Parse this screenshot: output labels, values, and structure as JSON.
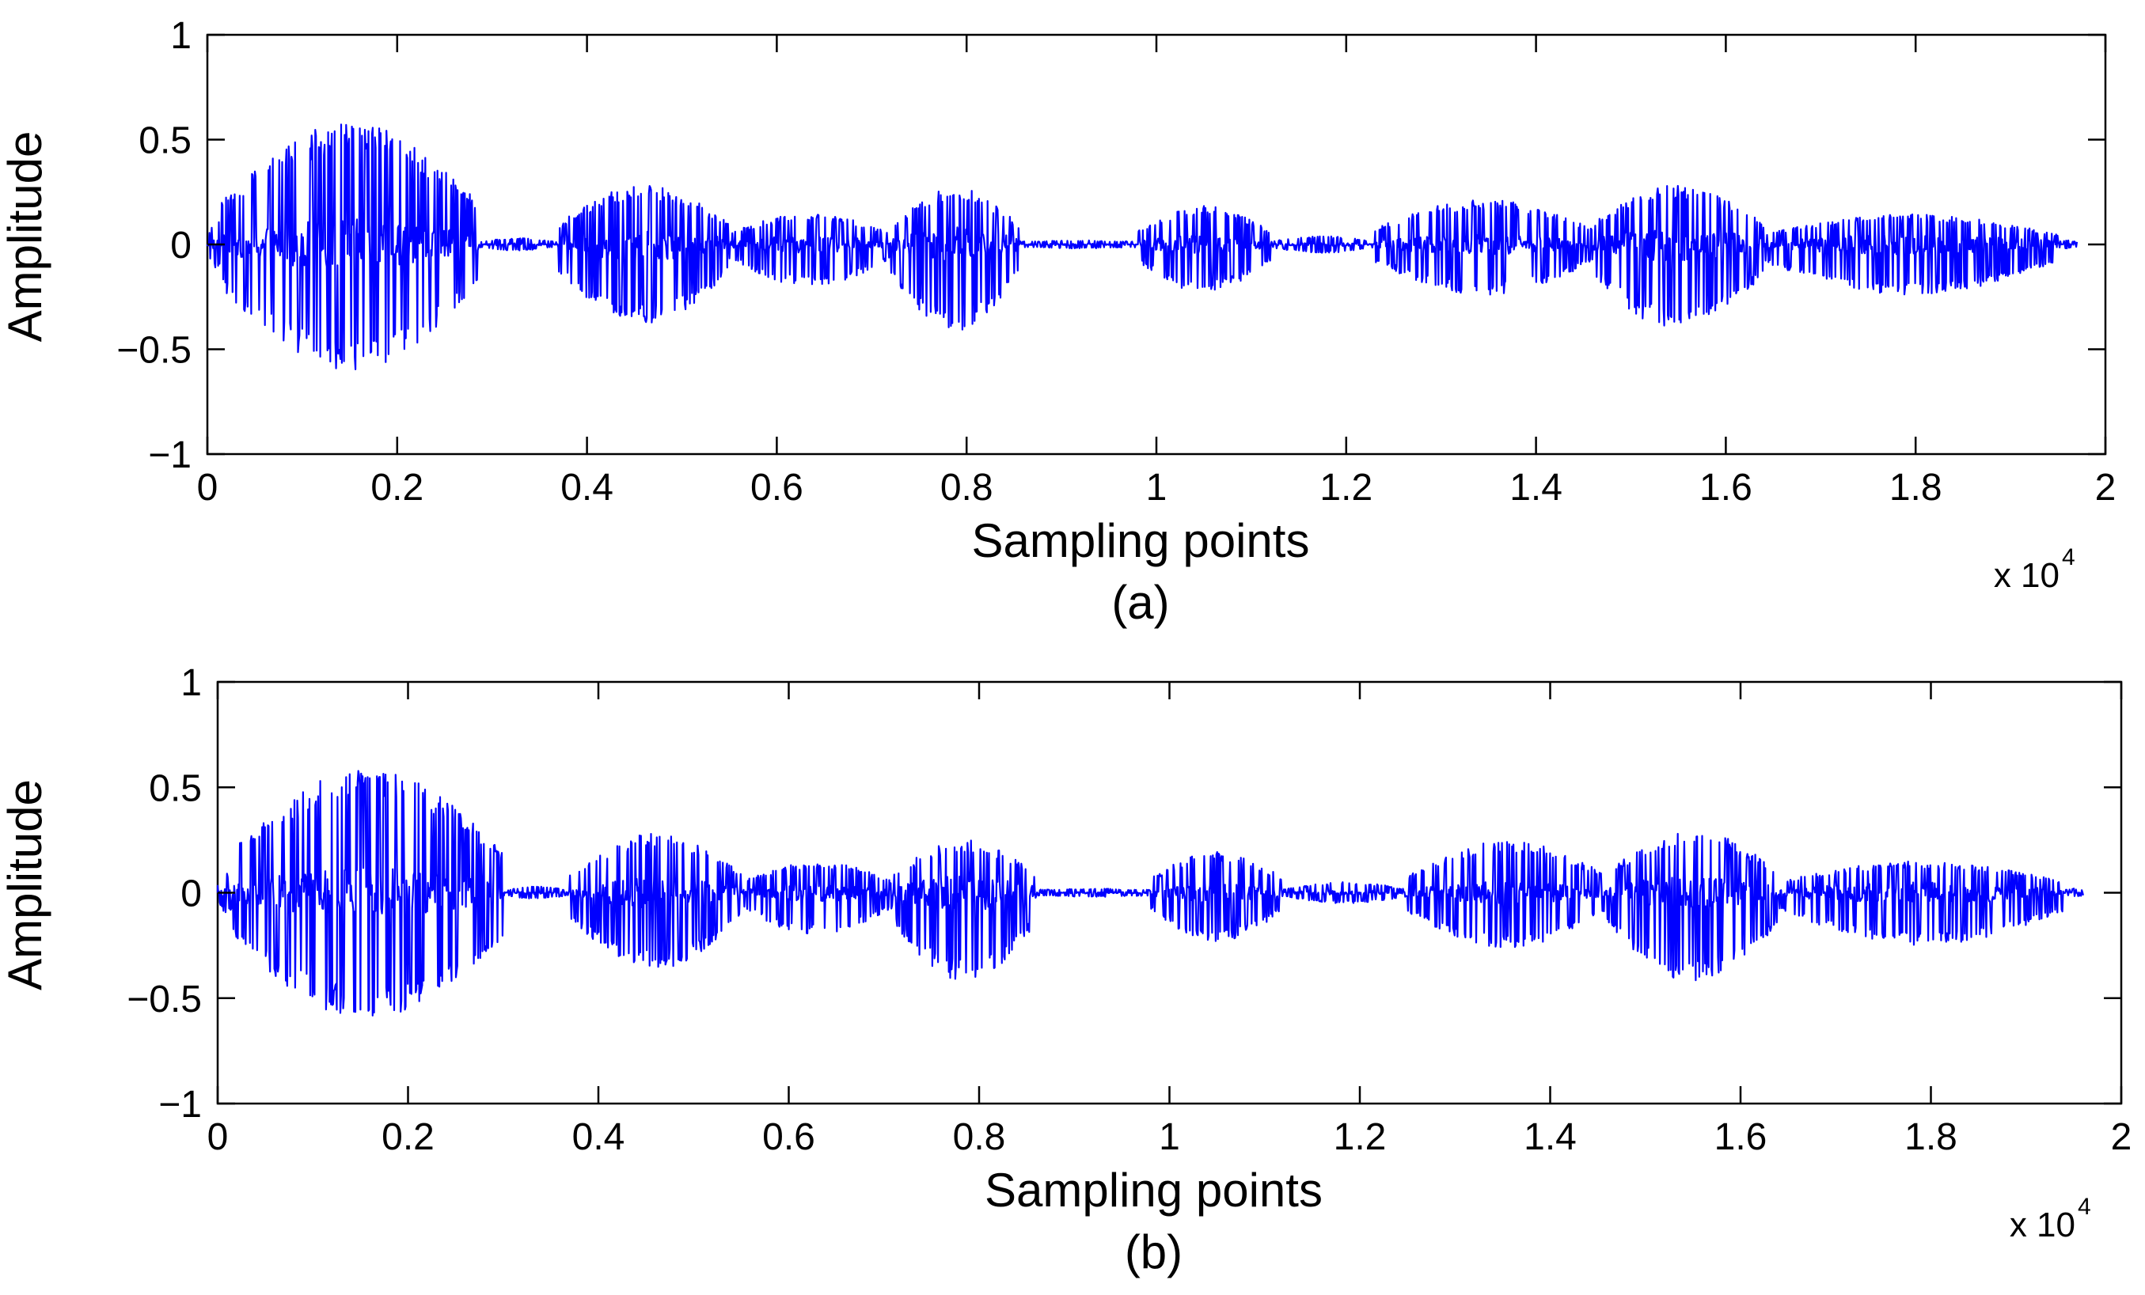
{
  "chart_data": [
    {
      "type": "line",
      "panel": "a",
      "caption": "(a)",
      "xlabel": "Sampling points",
      "ylabel": "Amplitude",
      "x_multiplier_base": "x 10",
      "x_multiplier_power": "4",
      "xlim": [
        0,
        2
      ],
      "ylim": [
        -1,
        1
      ],
      "xticks": [
        0,
        0.2,
        0.4,
        0.6,
        0.8,
        1,
        1.2,
        1.4,
        1.6,
        1.8,
        2
      ],
      "xtick_labels": [
        "0",
        "0.2",
        "0.4",
        "0.6",
        "0.8",
        "1",
        "1.2",
        "1.4",
        "1.6",
        "1.8",
        "2"
      ],
      "yticks": [
        1,
        0.5,
        0,
        -0.5,
        -1
      ],
      "ytick_labels": [
        "1",
        "0.5",
        "0",
        "−0.5",
        "−1"
      ],
      "series_color": "#0000ff",
      "signal_end": 1.97,
      "segments": [
        {
          "start": 0.0,
          "end": 0.02,
          "amp": 0.12,
          "pos_scale": 1.0
        },
        {
          "start": 0.015,
          "end": 0.285,
          "amp": 0.6,
          "pos_scale": 0.97
        },
        {
          "start": 0.285,
          "end": 0.37,
          "amp": 0.03,
          "pos_scale": 1.0
        },
        {
          "start": 0.37,
          "end": 0.55,
          "amp": 0.38,
          "pos_scale": 0.75
        },
        {
          "start": 0.55,
          "end": 0.72,
          "amp": 0.2,
          "pos_scale": 0.75
        },
        {
          "start": 0.72,
          "end": 0.855,
          "amp": 0.42,
          "pos_scale": 0.65
        },
        {
          "start": 0.855,
          "end": 0.98,
          "amp": 0.02,
          "pos_scale": 1.0
        },
        {
          "start": 0.98,
          "end": 1.12,
          "amp": 0.23,
          "pos_scale": 0.8
        },
        {
          "start": 1.12,
          "end": 1.23,
          "amp": 0.04,
          "pos_scale": 1.0
        },
        {
          "start": 1.23,
          "end": 1.46,
          "amp": 0.24,
          "pos_scale": 0.9
        },
        {
          "start": 1.46,
          "end": 1.64,
          "amp": 0.41,
          "pos_scale": 0.7
        },
        {
          "start": 1.64,
          "end": 1.95,
          "amp": 0.24,
          "pos_scale": 0.6
        },
        {
          "start": 1.95,
          "end": 1.97,
          "amp": 0.02,
          "pos_scale": 1.0
        }
      ]
    },
    {
      "type": "line",
      "panel": "b",
      "caption": "(b)",
      "xlabel": "Sampling points",
      "ylabel": "Amplitude",
      "x_multiplier_base": "x 10",
      "x_multiplier_power": "4",
      "xlim": [
        0,
        2
      ],
      "ylim": [
        -1,
        1
      ],
      "xticks": [
        0,
        0.2,
        0.4,
        0.6,
        0.8,
        1,
        1.2,
        1.4,
        1.6,
        1.8,
        2
      ],
      "xtick_labels": [
        "0",
        "0.2",
        "0.4",
        "0.6",
        "0.8",
        "1",
        "1.2",
        "1.4",
        "1.6",
        "1.8",
        "2"
      ],
      "yticks": [
        1,
        0.5,
        0,
        -0.5,
        -1
      ],
      "ytick_labels": [
        "1",
        "0.5",
        "0",
        "−0.5",
        "−1"
      ],
      "series_color": "#0000ff",
      "signal_end": 1.96,
      "segments": [
        {
          "start": 0.0,
          "end": 0.02,
          "amp": 0.1,
          "pos_scale": 1.0
        },
        {
          "start": 0.015,
          "end": 0.3,
          "amp": 0.6,
          "pos_scale": 0.98
        },
        {
          "start": 0.3,
          "end": 0.37,
          "amp": 0.03,
          "pos_scale": 1.0
        },
        {
          "start": 0.37,
          "end": 0.55,
          "amp": 0.36,
          "pos_scale": 0.78
        },
        {
          "start": 0.55,
          "end": 0.71,
          "amp": 0.2,
          "pos_scale": 0.75
        },
        {
          "start": 0.71,
          "end": 0.86,
          "amp": 0.42,
          "pos_scale": 0.6
        },
        {
          "start": 0.86,
          "end": 0.98,
          "amp": 0.02,
          "pos_scale": 1.0
        },
        {
          "start": 0.98,
          "end": 1.12,
          "amp": 0.23,
          "pos_scale": 0.85
        },
        {
          "start": 1.12,
          "end": 1.25,
          "amp": 0.05,
          "pos_scale": 1.0
        },
        {
          "start": 1.25,
          "end": 1.46,
          "amp": 0.26,
          "pos_scale": 0.95
        },
        {
          "start": 1.46,
          "end": 1.64,
          "amp": 0.42,
          "pos_scale": 0.7
        },
        {
          "start": 1.64,
          "end": 1.94,
          "amp": 0.25,
          "pos_scale": 0.6
        },
        {
          "start": 1.94,
          "end": 1.96,
          "amp": 0.02,
          "pos_scale": 1.0
        }
      ]
    }
  ]
}
